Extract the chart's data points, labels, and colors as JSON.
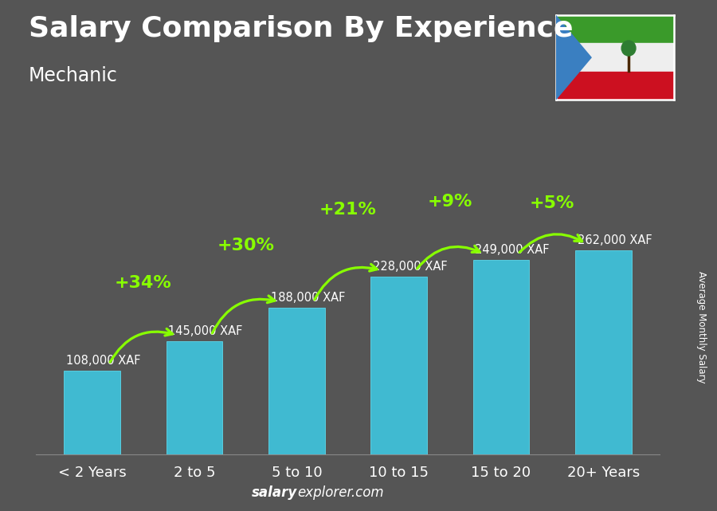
{
  "title": "Salary Comparison By Experience",
  "subtitle": "Mechanic",
  "categories": [
    "< 2 Years",
    "2 to 5",
    "5 to 10",
    "10 to 15",
    "15 to 20",
    "20+ Years"
  ],
  "values": [
    108000,
    145000,
    188000,
    228000,
    249000,
    262000
  ],
  "value_labels": [
    "108,000 XAF",
    "145,000 XAF",
    "188,000 XAF",
    "228,000 XAF",
    "249,000 XAF",
    "262,000 XAF"
  ],
  "pct_labels": [
    "+34%",
    "+30%",
    "+21%",
    "+9%",
    "+5%"
  ],
  "bar_color": "#3EC6E0",
  "pct_color": "#88FF00",
  "bg_color": "#555555",
  "footer_bold": "salary",
  "footer_regular": "explorer.com",
  "ylabel_text": "Average Monthly Salary",
  "ylim": [
    0,
    340000
  ],
  "title_fontsize": 26,
  "subtitle_fontsize": 17,
  "bar_width": 0.55,
  "val_fontsize": 10.5,
  "pct_fontsize": 16,
  "xtick_fontsize": 13
}
